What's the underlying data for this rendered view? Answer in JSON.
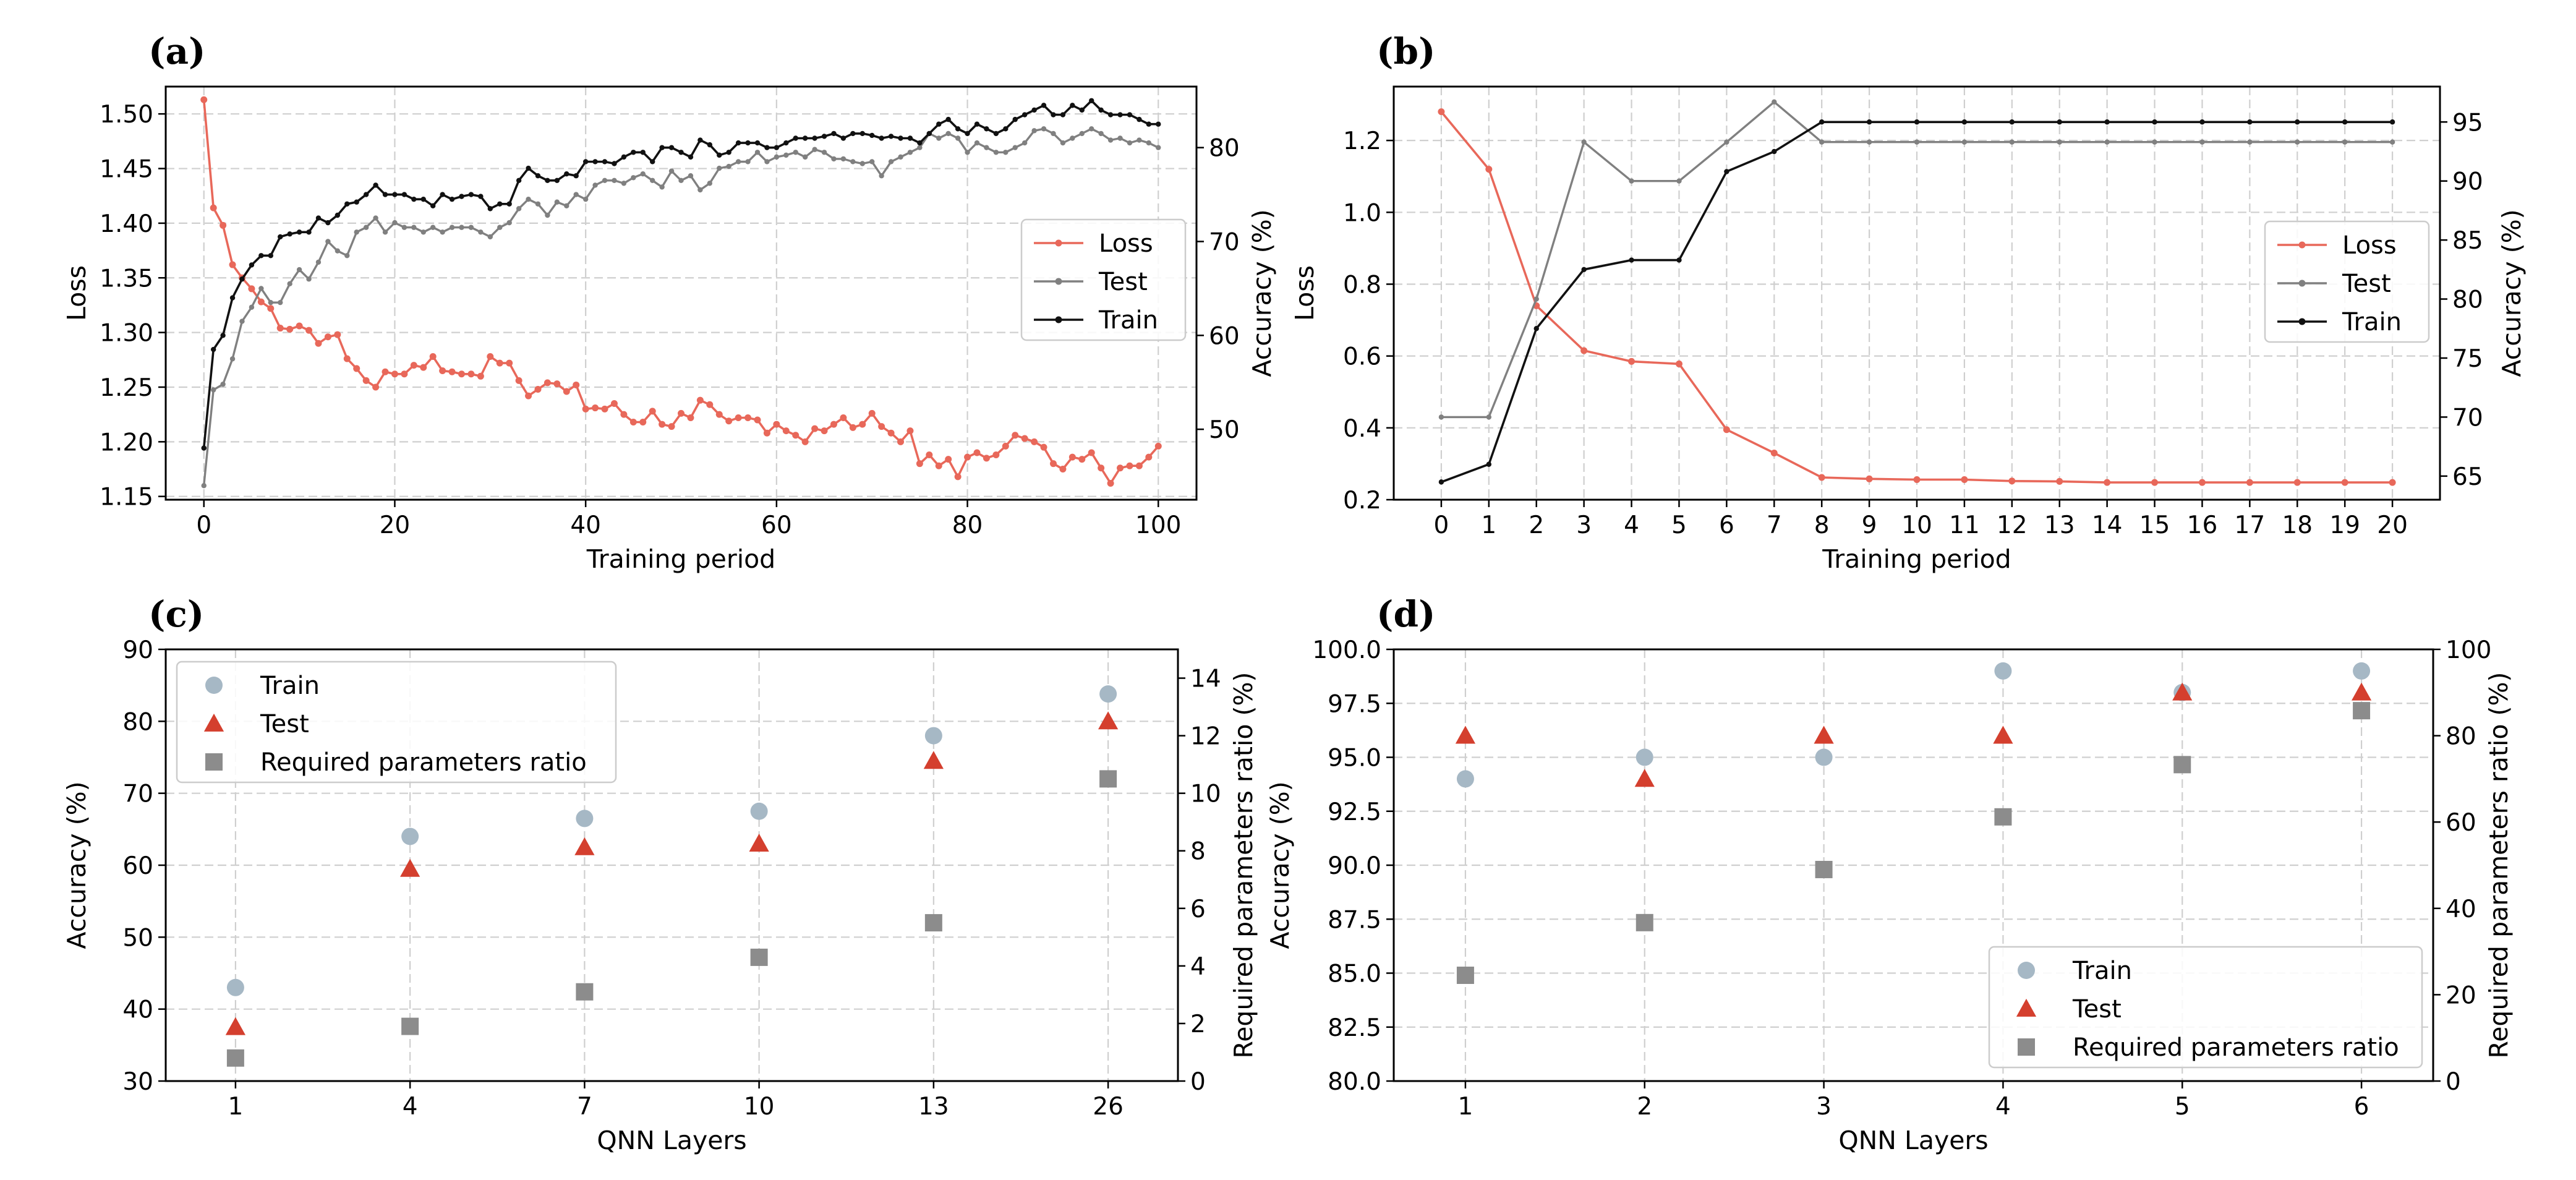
{
  "colors": {
    "loss": "#e8685a",
    "test": "#808080",
    "train": "#111111",
    "train_marker": "#a6b8c5",
    "test_marker": "#d43f2e",
    "ratio_marker": "#8c8c8c",
    "grid": "#cfcfcf"
  },
  "chart_data": [
    {
      "id": "a",
      "type": "line",
      "panel_label": "(a)",
      "xlabel": "Training period",
      "ylabel_left": "Loss",
      "ylabel_right": "Accuracy (%)",
      "xlim": [
        -4,
        104
      ],
      "ylim_left": [
        1.147,
        1.525
      ],
      "ylim_right": [
        42.5,
        86.5
      ],
      "xticks": [
        0,
        20,
        40,
        60,
        80,
        100
      ],
      "yticks_left": [
        1.15,
        1.2,
        1.25,
        1.3,
        1.35,
        1.4,
        1.45,
        1.5
      ],
      "yticks_left_labels": [
        "1.15",
        "1.20",
        "1.25",
        "1.30",
        "1.35",
        "1.40",
        "1.45",
        "1.50"
      ],
      "yticks_right": [
        50,
        60,
        70,
        80
      ],
      "legend": [
        "Loss",
        "Test",
        "Train"
      ],
      "legend_position": "center-right",
      "series": [
        {
          "name": "Loss",
          "axis": "left",
          "color": "loss",
          "values": [
            1.513,
            1.414,
            1.398,
            1.362,
            1.35,
            1.34,
            1.328,
            1.322,
            1.304,
            1.303,
            1.306,
            1.302,
            1.29,
            1.296,
            1.298,
            1.276,
            1.267,
            1.256,
            1.25,
            1.264,
            1.262,
            1.262,
            1.27,
            1.268,
            1.278,
            1.265,
            1.264,
            1.262,
            1.262,
            1.26,
            1.278,
            1.272,
            1.272,
            1.256,
            1.242,
            1.248,
            1.254,
            1.253,
            1.246,
            1.252,
            1.23,
            1.231,
            1.23,
            1.235,
            1.225,
            1.218,
            1.218,
            1.228,
            1.216,
            1.214,
            1.226,
            1.222,
            1.238,
            1.234,
            1.225,
            1.219,
            1.222,
            1.222,
            1.22,
            1.208,
            1.216,
            1.21,
            1.206,
            1.2,
            1.212,
            1.21,
            1.216,
            1.222,
            1.213,
            1.216,
            1.226,
            1.214,
            1.208,
            1.2,
            1.21,
            1.18,
            1.188,
            1.178,
            1.184,
            1.168,
            1.186,
            1.19,
            1.185,
            1.188,
            1.196,
            1.206,
            1.203,
            1.2,
            1.195,
            1.18,
            1.175,
            1.186,
            1.184,
            1.19,
            1.176,
            1.162,
            1.176,
            1.178,
            1.178,
            1.186,
            1.196
          ]
        },
        {
          "name": "Test",
          "axis": "right",
          "color": "test",
          "values": [
            44.0,
            54.2,
            54.8,
            57.5,
            61.5,
            63.0,
            65.0,
            63.5,
            63.5,
            65.5,
            67.0,
            66.0,
            67.8,
            70.0,
            69.0,
            68.5,
            71.0,
            71.5,
            72.5,
            71.0,
            72.0,
            71.5,
            71.5,
            71.0,
            71.5,
            71.0,
            71.5,
            71.5,
            71.5,
            71.0,
            70.5,
            71.5,
            72.0,
            73.5,
            74.5,
            74.0,
            72.8,
            74.2,
            73.8,
            75.0,
            74.5,
            76.0,
            76.5,
            76.5,
            76.2,
            76.8,
            77.2,
            76.5,
            75.8,
            77.5,
            76.5,
            77.0,
            75.5,
            76.2,
            77.8,
            78.0,
            78.5,
            78.5,
            79.5,
            78.5,
            79.0,
            79.2,
            79.5,
            79.0,
            79.8,
            79.5,
            78.8,
            78.8,
            78.5,
            78.3,
            78.5,
            77.0,
            78.5,
            79.0,
            79.5,
            80.0,
            81.5,
            81.0,
            81.5,
            81.0,
            79.5,
            80.5,
            80.0,
            79.5,
            79.5,
            80.0,
            80.5,
            81.8,
            82.0,
            81.5,
            80.5,
            81.0,
            81.5,
            82.0,
            81.5,
            80.8,
            81.0,
            80.5,
            80.8,
            80.5,
            80.0
          ]
        },
        {
          "name": "Train",
          "axis": "right",
          "color": "train",
          "values": [
            48.0,
            58.5,
            60.0,
            64.0,
            66.0,
            67.5,
            68.5,
            68.5,
            70.5,
            70.8,
            71.0,
            71.0,
            72.5,
            72.0,
            72.8,
            74.0,
            74.2,
            75.0,
            76.0,
            75.0,
            75.0,
            75.0,
            74.5,
            74.5,
            73.8,
            75.0,
            74.5,
            74.8,
            75.0,
            74.8,
            73.5,
            74.0,
            74.0,
            76.5,
            77.8,
            77.0,
            76.5,
            76.5,
            77.2,
            77.0,
            78.5,
            78.5,
            78.5,
            78.3,
            79.0,
            79.5,
            79.5,
            78.5,
            80.0,
            80.0,
            79.5,
            79.0,
            80.8,
            80.3,
            79.2,
            79.5,
            80.5,
            80.5,
            80.5,
            80.0,
            80.0,
            80.5,
            81.0,
            81.0,
            81.0,
            81.2,
            81.5,
            81.0,
            81.5,
            81.5,
            81.3,
            81.0,
            81.2,
            81.0,
            81.0,
            80.5,
            81.5,
            82.5,
            83.0,
            82.0,
            81.5,
            82.5,
            82.0,
            81.5,
            82.0,
            83.0,
            83.5,
            84.0,
            84.5,
            83.5,
            83.5,
            84.5,
            84.0,
            85.0,
            84.0,
            83.5,
            83.5,
            83.5,
            83.0,
            82.5,
            82.5
          ]
        }
      ]
    },
    {
      "id": "b",
      "type": "line",
      "panel_label": "(b)",
      "xlabel": "Training period",
      "ylabel_left": "Loss",
      "ylabel_right": "Accuracy (%)",
      "xlim": [
        -1,
        21
      ],
      "ylim_left": [
        0.2,
        1.35
      ],
      "ylim_right": [
        63.0,
        98.0
      ],
      "xticks": [
        0,
        1,
        2,
        3,
        4,
        5,
        6,
        7,
        8,
        9,
        10,
        11,
        12,
        13,
        14,
        15,
        16,
        17,
        18,
        19,
        20
      ],
      "yticks_left": [
        0.2,
        0.4,
        0.6,
        0.8,
        1.0,
        1.2
      ],
      "yticks_left_labels": [
        "0.2",
        "0.4",
        "0.6",
        "0.8",
        "1.0",
        "1.2"
      ],
      "yticks_right": [
        65,
        70,
        75,
        80,
        85,
        90,
        95
      ],
      "legend": [
        "Loss",
        "Test",
        "Train"
      ],
      "legend_position": "center-right",
      "series": [
        {
          "name": "Loss",
          "axis": "left",
          "color": "loss",
          "values": [
            1.28,
            1.12,
            0.74,
            0.615,
            0.585,
            0.578,
            0.395,
            0.33,
            0.262,
            0.258,
            0.256,
            0.256,
            0.252,
            0.251,
            0.248,
            0.248,
            0.248,
            0.248,
            0.248,
            0.248,
            0.248
          ]
        },
        {
          "name": "Test",
          "axis": "right",
          "color": "test",
          "values": [
            70.0,
            70.0,
            80.0,
            93.3,
            90.0,
            90.0,
            93.3,
            96.7,
            93.3,
            93.3,
            93.3,
            93.3,
            93.3,
            93.3,
            93.3,
            93.3,
            93.3,
            93.3,
            93.3,
            93.3,
            93.3
          ]
        },
        {
          "name": "Train",
          "axis": "right",
          "color": "train",
          "values": [
            64.5,
            66.0,
            77.5,
            82.5,
            83.3,
            83.3,
            90.8,
            92.5,
            95.0,
            95.0,
            95.0,
            95.0,
            95.0,
            95.0,
            95.0,
            95.0,
            95.0,
            95.0,
            95.0,
            95.0,
            95.0
          ]
        }
      ]
    },
    {
      "id": "c",
      "type": "scatter",
      "panel_label": "(c)",
      "xlabel": "QNN Layers",
      "ylabel_left": "Accuracy (%)",
      "ylabel_right": "Required parameters ratio (%)",
      "categories": [
        "1",
        "4",
        "7",
        "10",
        "13",
        "26"
      ],
      "ylim_left": [
        30,
        90
      ],
      "ylim_right": [
        0,
        15
      ],
      "yticks_left": [
        30,
        40,
        50,
        60,
        70,
        80,
        90
      ],
      "yticks_left_labels": [
        "30",
        "40",
        "50",
        "60",
        "70",
        "80",
        "90"
      ],
      "yticks_right": [
        0,
        2,
        4,
        6,
        8,
        10,
        12,
        14
      ],
      "legend": [
        "Train",
        "Test",
        "Required parameters ratio"
      ],
      "legend_position": "upper-left",
      "series": [
        {
          "name": "Train",
          "axis": "left",
          "marker": "circle",
          "color": "train_marker",
          "values": [
            43.0,
            64.0,
            66.5,
            67.5,
            78.0,
            83.8
          ]
        },
        {
          "name": "Test",
          "axis": "left",
          "marker": "triangle",
          "color": "test_marker",
          "values": [
            37.5,
            59.5,
            62.5,
            63.0,
            74.5,
            80.0
          ]
        },
        {
          "name": "Required parameters ratio",
          "axis": "right",
          "marker": "square",
          "color": "ratio_marker",
          "values": [
            0.8,
            1.9,
            3.1,
            4.3,
            5.5,
            10.5
          ]
        }
      ]
    },
    {
      "id": "d",
      "type": "scatter",
      "panel_label": "(d)",
      "xlabel": "QNN Layers",
      "ylabel_left": "Accuracy (%)",
      "ylabel_right": "Required parameters ratio (%)",
      "categories": [
        "1",
        "2",
        "3",
        "4",
        "5",
        "6"
      ],
      "ylim_left": [
        80,
        100
      ],
      "ylim_right": [
        0,
        100
      ],
      "yticks_left": [
        80,
        82.5,
        85,
        87.5,
        90,
        92.5,
        95,
        97.5,
        100
      ],
      "yticks_left_labels": [
        "80.0",
        "82.5",
        "85.0",
        "87.5",
        "90.0",
        "92.5",
        "95.0",
        "97.5",
        "100.0"
      ],
      "yticks_right": [
        0,
        20,
        40,
        60,
        80,
        100
      ],
      "legend": [
        "Train",
        "Test",
        "Required parameters ratio"
      ],
      "legend_position": "lower-right",
      "series": [
        {
          "name": "Train",
          "axis": "left",
          "marker": "circle",
          "color": "train_marker",
          "values": [
            94.0,
            95.0,
            95.0,
            99.0,
            98.0,
            99.0
          ]
        },
        {
          "name": "Test",
          "axis": "left",
          "marker": "triangle",
          "color": "test_marker",
          "values": [
            96.0,
            94.0,
            96.0,
            96.0,
            98.0,
            98.0
          ]
        },
        {
          "name": "Required parameters ratio",
          "axis": "right",
          "marker": "square",
          "color": "ratio_marker",
          "values": [
            24.5,
            36.7,
            49.0,
            61.2,
            73.3,
            85.8
          ]
        }
      ]
    }
  ]
}
